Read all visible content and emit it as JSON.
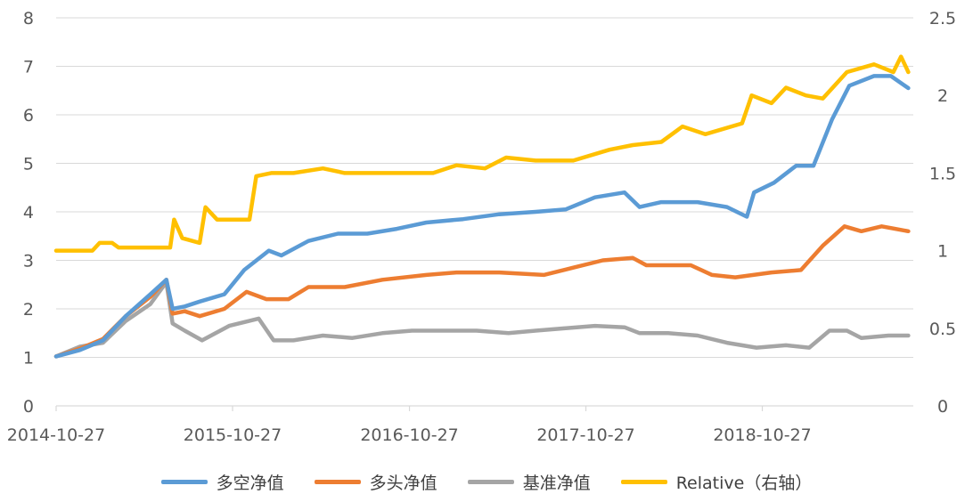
{
  "chart_data": {
    "type": "line",
    "x_ticks": [
      "2014-10-27",
      "2015-10-27",
      "2016-10-27",
      "2017-10-27",
      "2018-10-27"
    ],
    "y_left": {
      "min": 0,
      "max": 8,
      "ticks": [
        "0",
        "1",
        "2",
        "3",
        "4",
        "5",
        "6",
        "7",
        "8"
      ]
    },
    "y_right": {
      "min": 0,
      "max": 2.5,
      "ticks": [
        "0",
        "0.5",
        "1",
        "1.5",
        "2",
        "2.5"
      ]
    },
    "grid": true,
    "legend_position": "bottom",
    "series": [
      {
        "name": "多空净值",
        "axis": "left",
        "color": "#5B9BD5",
        "points": [
          [
            "2014-10-27",
            1.02
          ],
          [
            "2014-12-15",
            1.15
          ],
          [
            "2015-02-01",
            1.35
          ],
          [
            "2015-03-20",
            1.85
          ],
          [
            "2015-05-10",
            2.3
          ],
          [
            "2015-06-12",
            2.6
          ],
          [
            "2015-06-25",
            2.0
          ],
          [
            "2015-07-20",
            2.05
          ],
          [
            "2015-08-20",
            2.15
          ],
          [
            "2015-10-10",
            2.3
          ],
          [
            "2015-11-20",
            2.8
          ],
          [
            "2016-01-10",
            3.2
          ],
          [
            "2016-02-05",
            3.1
          ],
          [
            "2016-04-01",
            3.4
          ],
          [
            "2016-06-01",
            3.55
          ],
          [
            "2016-08-01",
            3.55
          ],
          [
            "2016-10-01",
            3.65
          ],
          [
            "2016-12-01",
            3.78
          ],
          [
            "2017-02-15",
            3.85
          ],
          [
            "2017-05-01",
            3.95
          ],
          [
            "2017-07-15",
            4.0
          ],
          [
            "2017-09-15",
            4.05
          ],
          [
            "2017-11-15",
            4.3
          ],
          [
            "2018-01-15",
            4.4
          ],
          [
            "2018-02-15",
            4.1
          ],
          [
            "2018-04-01",
            4.2
          ],
          [
            "2018-06-15",
            4.2
          ],
          [
            "2018-08-15",
            4.1
          ],
          [
            "2018-09-25",
            3.9
          ],
          [
            "2018-10-10",
            4.4
          ],
          [
            "2018-11-20",
            4.6
          ],
          [
            "2019-01-05",
            4.95
          ],
          [
            "2019-02-10",
            4.95
          ],
          [
            "2019-03-20",
            5.9
          ],
          [
            "2019-04-25",
            6.6
          ],
          [
            "2019-06-15",
            6.8
          ],
          [
            "2019-07-20",
            6.8
          ],
          [
            "2019-08-25",
            6.55
          ]
        ]
      },
      {
        "name": "多头净值",
        "axis": "left",
        "color": "#ED7D31",
        "points": [
          [
            "2014-10-27",
            1.02
          ],
          [
            "2014-12-15",
            1.18
          ],
          [
            "2015-02-01",
            1.38
          ],
          [
            "2015-03-20",
            1.85
          ],
          [
            "2015-05-10",
            2.25
          ],
          [
            "2015-06-12",
            2.6
          ],
          [
            "2015-06-25",
            1.9
          ],
          [
            "2015-07-20",
            1.95
          ],
          [
            "2015-08-20",
            1.85
          ],
          [
            "2015-10-10",
            2.0
          ],
          [
            "2015-11-25",
            2.35
          ],
          [
            "2016-01-05",
            2.2
          ],
          [
            "2016-02-20",
            2.2
          ],
          [
            "2016-04-01",
            2.45
          ],
          [
            "2016-06-15",
            2.45
          ],
          [
            "2016-09-01",
            2.6
          ],
          [
            "2016-12-01",
            2.7
          ],
          [
            "2017-02-01",
            2.75
          ],
          [
            "2017-05-01",
            2.75
          ],
          [
            "2017-08-01",
            2.7
          ],
          [
            "2017-10-01",
            2.85
          ],
          [
            "2017-12-01",
            3.0
          ],
          [
            "2018-02-01",
            3.05
          ],
          [
            "2018-03-01",
            2.9
          ],
          [
            "2018-06-01",
            2.9
          ],
          [
            "2018-07-15",
            2.7
          ],
          [
            "2018-09-01",
            2.65
          ],
          [
            "2018-11-15",
            2.75
          ],
          [
            "2019-01-15",
            2.8
          ],
          [
            "2019-03-01",
            3.3
          ],
          [
            "2019-04-15",
            3.7
          ],
          [
            "2019-05-20",
            3.6
          ],
          [
            "2019-07-01",
            3.7
          ],
          [
            "2019-08-25",
            3.6
          ]
        ]
      },
      {
        "name": "基准净值",
        "axis": "left",
        "color": "#A5A5A5",
        "points": [
          [
            "2014-10-27",
            1.02
          ],
          [
            "2014-12-15",
            1.22
          ],
          [
            "2015-02-01",
            1.3
          ],
          [
            "2015-03-20",
            1.75
          ],
          [
            "2015-05-10",
            2.1
          ],
          [
            "2015-06-12",
            2.55
          ],
          [
            "2015-06-25",
            1.7
          ],
          [
            "2015-07-20",
            1.55
          ],
          [
            "2015-08-25",
            1.35
          ],
          [
            "2015-10-20",
            1.65
          ],
          [
            "2015-12-20",
            1.8
          ],
          [
            "2016-01-20",
            1.35
          ],
          [
            "2016-03-01",
            1.35
          ],
          [
            "2016-05-01",
            1.45
          ],
          [
            "2016-07-01",
            1.4
          ],
          [
            "2016-09-01",
            1.5
          ],
          [
            "2016-11-01",
            1.55
          ],
          [
            "2017-01-01",
            1.55
          ],
          [
            "2017-03-15",
            1.55
          ],
          [
            "2017-05-20",
            1.5
          ],
          [
            "2017-07-15",
            1.55
          ],
          [
            "2017-09-15",
            1.6
          ],
          [
            "2017-11-15",
            1.65
          ],
          [
            "2018-01-15",
            1.62
          ],
          [
            "2018-02-15",
            1.5
          ],
          [
            "2018-04-15",
            1.5
          ],
          [
            "2018-06-15",
            1.45
          ],
          [
            "2018-08-15",
            1.3
          ],
          [
            "2018-10-15",
            1.2
          ],
          [
            "2018-12-15",
            1.25
          ],
          [
            "2019-02-01",
            1.2
          ],
          [
            "2019-03-15",
            1.55
          ],
          [
            "2019-04-20",
            1.55
          ],
          [
            "2019-05-20",
            1.4
          ],
          [
            "2019-07-15",
            1.45
          ],
          [
            "2019-08-25",
            1.45
          ]
        ]
      },
      {
        "name": "Relative（右轴）",
        "axis": "right",
        "color": "#FFC000",
        "points": [
          [
            "2014-10-27",
            1.0
          ],
          [
            "2015-01-10",
            1.0
          ],
          [
            "2015-01-25",
            1.05
          ],
          [
            "2015-02-20",
            1.05
          ],
          [
            "2015-03-05",
            1.02
          ],
          [
            "2015-06-20",
            1.02
          ],
          [
            "2015-06-28",
            1.2
          ],
          [
            "2015-07-15",
            1.08
          ],
          [
            "2015-08-20",
            1.05
          ],
          [
            "2015-09-01",
            1.28
          ],
          [
            "2015-09-25",
            1.2
          ],
          [
            "2015-12-01",
            1.2
          ],
          [
            "2015-12-15",
            1.48
          ],
          [
            "2016-01-15",
            1.5
          ],
          [
            "2016-03-01",
            1.5
          ],
          [
            "2016-05-01",
            1.53
          ],
          [
            "2016-06-15",
            1.5
          ],
          [
            "2016-10-01",
            1.5
          ],
          [
            "2016-12-15",
            1.5
          ],
          [
            "2017-02-01",
            1.55
          ],
          [
            "2017-04-01",
            1.53
          ],
          [
            "2017-05-15",
            1.6
          ],
          [
            "2017-07-15",
            1.58
          ],
          [
            "2017-10-01",
            1.58
          ],
          [
            "2017-12-15",
            1.65
          ],
          [
            "2018-02-01",
            1.68
          ],
          [
            "2018-04-01",
            1.7
          ],
          [
            "2018-05-15",
            1.8
          ],
          [
            "2018-07-01",
            1.75
          ],
          [
            "2018-09-15",
            1.82
          ],
          [
            "2018-10-05",
            2.0
          ],
          [
            "2018-11-15",
            1.95
          ],
          [
            "2018-12-15",
            2.05
          ],
          [
            "2019-01-25",
            2.0
          ],
          [
            "2019-03-01",
            1.98
          ],
          [
            "2019-04-20",
            2.15
          ],
          [
            "2019-06-15",
            2.2
          ],
          [
            "2019-07-25",
            2.15
          ],
          [
            "2019-08-10",
            2.25
          ],
          [
            "2019-08-25",
            2.15
          ]
        ]
      }
    ]
  }
}
